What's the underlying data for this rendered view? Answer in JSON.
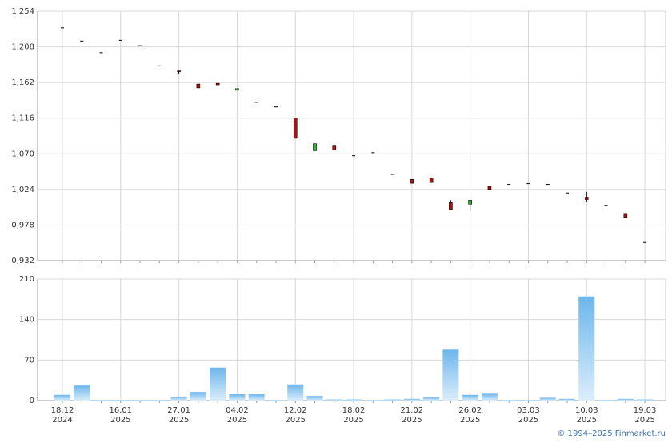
{
  "chart_data": [
    {
      "type": "candlestick",
      "open": [
        1.233,
        1.216,
        1.201,
        1.217,
        1.21,
        1.184,
        1.177,
        1.16,
        1.161,
        1.152,
        1.137,
        1.131,
        1.116,
        1.074,
        1.081,
        1.068,
        1.072,
        1.044,
        1.037,
        1.039,
        1.007,
        1.005,
        1.028,
        1.031,
        1.032,
        1.031,
        1.02,
        1.014,
        1.004,
        0.993,
        0.956
      ],
      "high": [
        1.233,
        1.216,
        1.201,
        1.217,
        1.21,
        1.184,
        1.177,
        1.16,
        1.161,
        1.154,
        1.137,
        1.131,
        1.116,
        1.083,
        1.081,
        1.068,
        1.072,
        1.044,
        1.037,
        1.039,
        1.01,
        1.01,
        1.028,
        1.031,
        1.032,
        1.031,
        1.02,
        1.021,
        1.004,
        0.993,
        0.956
      ],
      "low": [
        1.233,
        1.216,
        1.201,
        1.217,
        1.21,
        1.184,
        1.173,
        1.155,
        1.159,
        1.152,
        1.137,
        1.131,
        1.09,
        1.074,
        1.075,
        1.068,
        1.072,
        1.044,
        1.032,
        1.033,
        0.998,
        0.996,
        1.024,
        1.031,
        1.032,
        1.031,
        1.02,
        1.008,
        1.004,
        0.988,
        0.956
      ],
      "close": [
        1.233,
        1.216,
        1.201,
        1.217,
        1.21,
        1.184,
        1.176,
        1.155,
        1.159,
        1.154,
        1.137,
        1.131,
        1.09,
        1.083,
        1.075,
        1.068,
        1.072,
        1.044,
        1.032,
        1.033,
        0.998,
        1.01,
        1.024,
        1.031,
        1.032,
        1.031,
        1.02,
        1.011,
        1.004,
        0.988,
        0.956
      ],
      "up_color": "#33b533",
      "down_color": "#b01010",
      "ylim": [
        0.932,
        1.254
      ],
      "yticks": [
        {
          "value": 0.932,
          "label": "0,932"
        },
        {
          "value": 0.978,
          "label": "0,978"
        },
        {
          "value": 1.024,
          "label": "1,024"
        },
        {
          "value": 1.07,
          "label": "1,070"
        },
        {
          "value": 1.116,
          "label": "1,116"
        },
        {
          "value": 1.162,
          "label": "1,162"
        },
        {
          "value": 1.208,
          "label": "1,208"
        },
        {
          "value": 1.254,
          "label": "1,254"
        }
      ],
      "grid": true
    },
    {
      "type": "bar",
      "categories": [
        "18.12 2024",
        null,
        null,
        "16.01 2025",
        null,
        null,
        "27.01 2025",
        null,
        null,
        "04.02 2025",
        null,
        null,
        "12.02 2025",
        null,
        null,
        "18.02 2025",
        null,
        null,
        "21.02 2025",
        null,
        null,
        "26.02 2025",
        null,
        null,
        "03.03 2025",
        null,
        null,
        "10.03 2025",
        null,
        null,
        "19.03 2025"
      ],
      "values": [
        10,
        26,
        1,
        1,
        1,
        1,
        7,
        15,
        57,
        11,
        11,
        1,
        28,
        8,
        2,
        2,
        1,
        2,
        3,
        6,
        88,
        10,
        12,
        1,
        1,
        5,
        3,
        180,
        1,
        3,
        2
      ],
      "color": "#72b9ec",
      "ylim": [
        0,
        210
      ],
      "yticks": [
        0,
        70,
        140,
        210
      ],
      "grid": true
    }
  ],
  "footer": "© 1994–2025 Finmarket.ru"
}
